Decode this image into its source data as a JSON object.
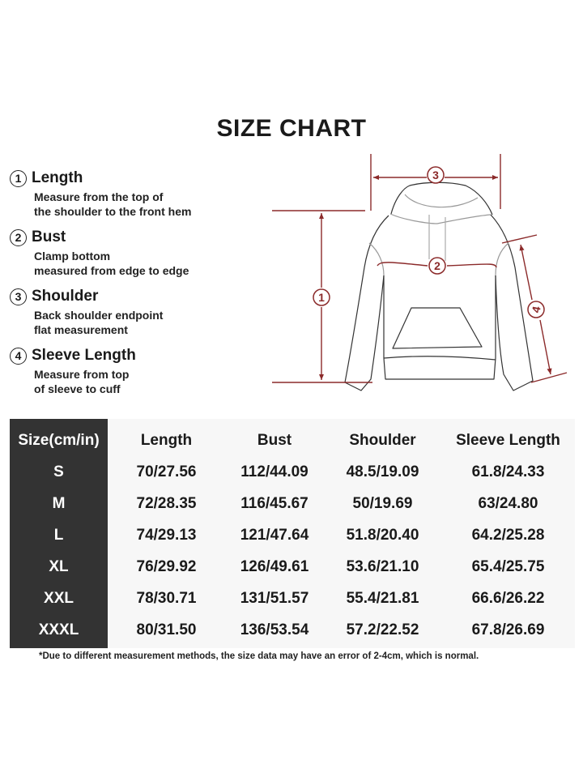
{
  "title": "SIZE CHART",
  "measurements": [
    {
      "number": "1",
      "name": "Length",
      "desc": [
        "Measure from the top of",
        "the shoulder to the front hem"
      ]
    },
    {
      "number": "2",
      "name": "Bust",
      "desc": [
        "Clamp bottom",
        "measured from edge to edge"
      ]
    },
    {
      "number": "3",
      "name": "Shoulder",
      "desc": [
        "Back shoulder endpoint",
        "flat measurement"
      ]
    },
    {
      "number": "4",
      "name": "Sleeve Length",
      "desc": [
        "Measure from top",
        "of sleeve to cuff"
      ]
    }
  ],
  "illustration": {
    "labels": [
      "1",
      "2",
      "3",
      "4"
    ],
    "line_color": "#8b2a2a"
  },
  "table": {
    "headers": [
      "Size(cm/in)",
      "Length",
      "Bust",
      "Shoulder",
      "Sleeve Length"
    ],
    "rows": [
      [
        "S",
        "70/27.56",
        "112/44.09",
        "48.5/19.09",
        "61.8/24.33"
      ],
      [
        "M",
        "72/28.35",
        "116/45.67",
        "50/19.69",
        "63/24.80"
      ],
      [
        "L",
        "74/29.13",
        "121/47.64",
        "51.8/20.40",
        "64.2/25.28"
      ],
      [
        "XL",
        "76/29.92",
        "126/49.61",
        "53.6/21.10",
        "65.4/25.75"
      ],
      [
        "XXL",
        "78/30.71",
        "131/51.57",
        "55.4/21.81",
        "66.6/26.22"
      ],
      [
        "XXXL",
        "80/31.50",
        "136/53.54",
        "57.2/22.52",
        "67.8/26.69"
      ]
    ]
  },
  "note": "*Due to different measurement methods, the size data may have an error of 2-4cm, which is normal."
}
